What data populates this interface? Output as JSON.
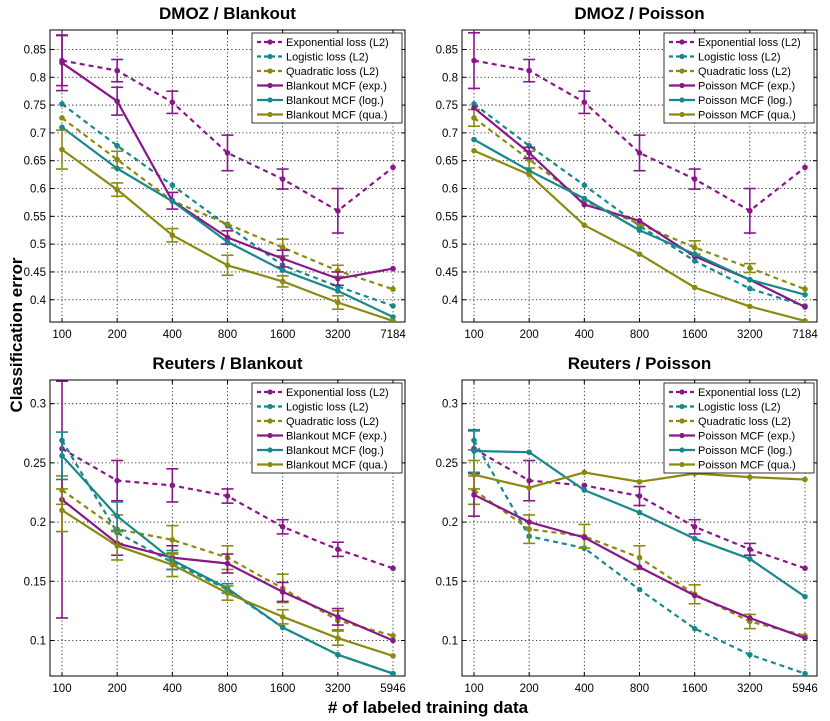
{
  "xlabel": "# of labeled training data",
  "ylabel": "Classification error",
  "colors": {
    "exp": "#8a168a",
    "log": "#17888c",
    "qua": "#8a8a10"
  },
  "chart_data": [
    {
      "type": "line",
      "title": "DMOZ / Blankout",
      "legend_position": "top-right",
      "xticks": [
        "100",
        "200",
        "400",
        "800",
        "1600",
        "3200",
        "7184"
      ],
      "ylim": [
        0.36,
        0.885
      ],
      "yticks": [
        0.4,
        0.45,
        0.5,
        0.55,
        0.6,
        0.65,
        0.7,
        0.75,
        0.8,
        0.85
      ],
      "series": [
        {
          "name": "Exponential loss (L2)",
          "key": "exp",
          "dashed": true,
          "values": [
            0.83,
            0.812,
            0.755,
            0.664,
            0.617,
            0.56,
            0.638
          ],
          "errors": [
            0.045,
            0.02,
            0.02,
            0.032,
            0.018,
            0.04,
            0
          ]
        },
        {
          "name": "Logistic loss (L2)",
          "key": "log",
          "dashed": true,
          "values": [
            0.752,
            0.677,
            0.606,
            0.533,
            0.462,
            0.424,
            0.389
          ],
          "errors": [
            0,
            0,
            0,
            0,
            0,
            0,
            0
          ]
        },
        {
          "name": "Quadratic loss (L2)",
          "key": "qua",
          "dashed": true,
          "values": [
            0.727,
            0.652,
            0.578,
            0.536,
            0.494,
            0.452,
            0.419
          ],
          "errors": [
            0,
            0.015,
            0,
            0,
            0.015,
            0.01,
            0
          ]
        },
        {
          "name": "Blankout MCF (exp.)",
          "key": "exp",
          "dashed": false,
          "values": [
            0.826,
            0.757,
            0.578,
            0.512,
            0.474,
            0.438,
            0.456
          ],
          "errors": [
            0.05,
            0.025,
            0.015,
            0.012,
            0.015,
            0.012,
            0
          ]
        },
        {
          "name": "Blankout MCF (log.)",
          "key": "log",
          "dashed": false,
          "values": [
            0.71,
            0.636,
            0.577,
            0.504,
            0.453,
            0.416,
            0.369
          ],
          "errors": [
            0,
            0,
            0,
            0,
            0,
            0,
            0
          ]
        },
        {
          "name": "Blankout MCF (qua.)",
          "key": "qua",
          "dashed": false,
          "values": [
            0.67,
            0.598,
            0.516,
            0.462,
            0.433,
            0.395,
            0.362
          ],
          "errors": [
            0.035,
            0.012,
            0.012,
            0.018,
            0.01,
            0.012,
            0
          ]
        }
      ]
    },
    {
      "type": "line",
      "title": "DMOZ / Poisson",
      "legend_position": "top-right",
      "xticks": [
        "100",
        "200",
        "400",
        "800",
        "1600",
        "3200",
        "7184"
      ],
      "ylim": [
        0.36,
        0.885
      ],
      "yticks": [
        0.4,
        0.45,
        0.5,
        0.55,
        0.6,
        0.65,
        0.7,
        0.75,
        0.8,
        0.85
      ],
      "series": [
        {
          "name": "Exponential loss (L2)",
          "key": "exp",
          "dashed": true,
          "values": [
            0.83,
            0.812,
            0.755,
            0.664,
            0.617,
            0.56,
            0.638
          ],
          "errors": [
            0.05,
            0.02,
            0.02,
            0.032,
            0.018,
            0.04,
            0
          ]
        },
        {
          "name": "Logistic loss (L2)",
          "key": "log",
          "dashed": true,
          "values": [
            0.752,
            0.677,
            0.606,
            0.533,
            0.47,
            0.42,
            0.389
          ],
          "errors": [
            0,
            0,
            0,
            0,
            0,
            0,
            0
          ]
        },
        {
          "name": "Quadratic loss (L2)",
          "key": "qua",
          "dashed": true,
          "values": [
            0.727,
            0.652,
            0.578,
            0.536,
            0.494,
            0.457,
            0.419
          ],
          "errors": [
            0.015,
            0.015,
            0,
            0,
            0.012,
            0.008,
            0
          ]
        },
        {
          "name": "Poisson MCF (exp.)",
          "key": "exp",
          "dashed": false,
          "values": [
            0.745,
            0.664,
            0.571,
            0.542,
            0.478,
            0.436,
            0.387
          ],
          "errors": [
            0,
            0.01,
            0,
            0,
            0,
            0,
            0
          ]
        },
        {
          "name": "Poisson MCF (log.)",
          "key": "log",
          "dashed": false,
          "values": [
            0.688,
            0.632,
            0.582,
            0.525,
            0.482,
            0.436,
            0.409
          ],
          "errors": [
            0,
            0,
            0,
            0,
            0,
            0,
            0
          ]
        },
        {
          "name": "Poisson MCF (qua.)",
          "key": "qua",
          "dashed": false,
          "values": [
            0.668,
            0.625,
            0.534,
            0.482,
            0.422,
            0.388,
            0.362
          ],
          "errors": [
            0,
            0,
            0,
            0,
            0,
            0,
            0
          ]
        }
      ]
    },
    {
      "type": "line",
      "title": "Reuters / Blankout",
      "legend_position": "top-right",
      "xticks": [
        "100",
        "200",
        "400",
        "800",
        "1600",
        "3200",
        "5946"
      ],
      "ylim": [
        0.07,
        0.32
      ],
      "yticks": [
        0.1,
        0.15,
        0.2,
        0.25,
        0.3
      ],
      "series": [
        {
          "name": "Exponential loss (L2)",
          "key": "exp",
          "dashed": true,
          "values": [
            0.262,
            0.235,
            0.231,
            0.222,
            0.196,
            0.177,
            0.161
          ],
          "errors": [
            0,
            0.017,
            0.014,
            0.006,
            0.006,
            0.006,
            0
          ]
        },
        {
          "name": "Logistic loss (L2)",
          "key": "log",
          "dashed": true,
          "values": [
            0.269,
            0.191,
            0.166,
            0.143,
            0.111,
            0.088,
            0.072
          ],
          "errors": [
            0,
            0,
            0,
            0,
            0,
            0,
            0
          ]
        },
        {
          "name": "Quadratic loss (L2)",
          "key": "qua",
          "dashed": true,
          "values": [
            0.227,
            0.194,
            0.185,
            0.17,
            0.144,
            0.117,
            0.104
          ],
          "errors": [
            0.012,
            0.012,
            0.012,
            0.01,
            0.012,
            0.008,
            0
          ]
        },
        {
          "name": "Blankout MCF (exp.)",
          "key": "exp",
          "dashed": false,
          "values": [
            0.219,
            0.182,
            0.17,
            0.165,
            0.141,
            0.12,
            0.1
          ],
          "errors": [
            0.1,
            0.01,
            0.01,
            0.008,
            0.008,
            0.007,
            0
          ]
        },
        {
          "name": "Blankout MCF (log.)",
          "key": "log",
          "dashed": false,
          "values": [
            0.256,
            0.205,
            0.168,
            0.144,
            0.111,
            0.088,
            0.072
          ],
          "errors": [
            0.02,
            0.012,
            0.008,
            0.004,
            0,
            0,
            0
          ]
        },
        {
          "name": "Blankout MCF (qua.)",
          "key": "qua",
          "dashed": false,
          "values": [
            0.21,
            0.18,
            0.164,
            0.14,
            0.12,
            0.102,
            0.087
          ],
          "errors": [
            0.018,
            0.012,
            0.01,
            0.006,
            0.006,
            0.006,
            0
          ]
        }
      ]
    },
    {
      "type": "line",
      "title": "Reuters / Poisson",
      "legend_position": "top-right",
      "xticks": [
        "100",
        "200",
        "400",
        "800",
        "1600",
        "3200",
        "5946"
      ],
      "ylim": [
        0.07,
        0.32
      ],
      "yticks": [
        0.1,
        0.15,
        0.2,
        0.25,
        0.3
      ],
      "series": [
        {
          "name": "Exponential loss (L2)",
          "key": "exp",
          "dashed": true,
          "values": [
            0.262,
            0.235,
            0.231,
            0.222,
            0.196,
            0.177,
            0.161
          ],
          "errors": [
            0,
            0.017,
            0,
            0.008,
            0.006,
            0.005,
            0
          ]
        },
        {
          "name": "Logistic loss (L2)",
          "key": "log",
          "dashed": true,
          "values": [
            0.269,
            0.188,
            0.178,
            0.143,
            0.11,
            0.088,
            0.072
          ],
          "errors": [
            0.008,
            0,
            0,
            0,
            0,
            0,
            0
          ]
        },
        {
          "name": "Quadratic loss (L2)",
          "key": "qua",
          "dashed": true,
          "values": [
            0.227,
            0.194,
            0.188,
            0.17,
            0.139,
            0.116,
            0.104
          ],
          "errors": [
            0.012,
            0.012,
            0.01,
            0.01,
            0.008,
            0.006,
            0
          ]
        },
        {
          "name": "Poisson MCF (exp.)",
          "key": "exp",
          "dashed": false,
          "values": [
            0.223,
            0.2,
            0.187,
            0.162,
            0.138,
            0.119,
            0.102
          ],
          "errors": [
            0.018,
            0,
            0,
            0,
            0,
            0,
            0
          ]
        },
        {
          "name": "Poisson MCF (log.)",
          "key": "log",
          "dashed": false,
          "values": [
            0.26,
            0.259,
            0.227,
            0.208,
            0.186,
            0.169,
            0.137
          ],
          "errors": [
            0.018,
            0,
            0,
            0,
            0,
            0,
            0
          ]
        },
        {
          "name": "Poisson MCF (qua.)",
          "key": "qua",
          "dashed": false,
          "values": [
            0.24,
            0.229,
            0.242,
            0.234,
            0.241,
            0.238,
            0.236
          ],
          "errors": [
            0.012,
            0,
            0,
            0,
            0,
            0,
            0
          ]
        }
      ]
    }
  ]
}
